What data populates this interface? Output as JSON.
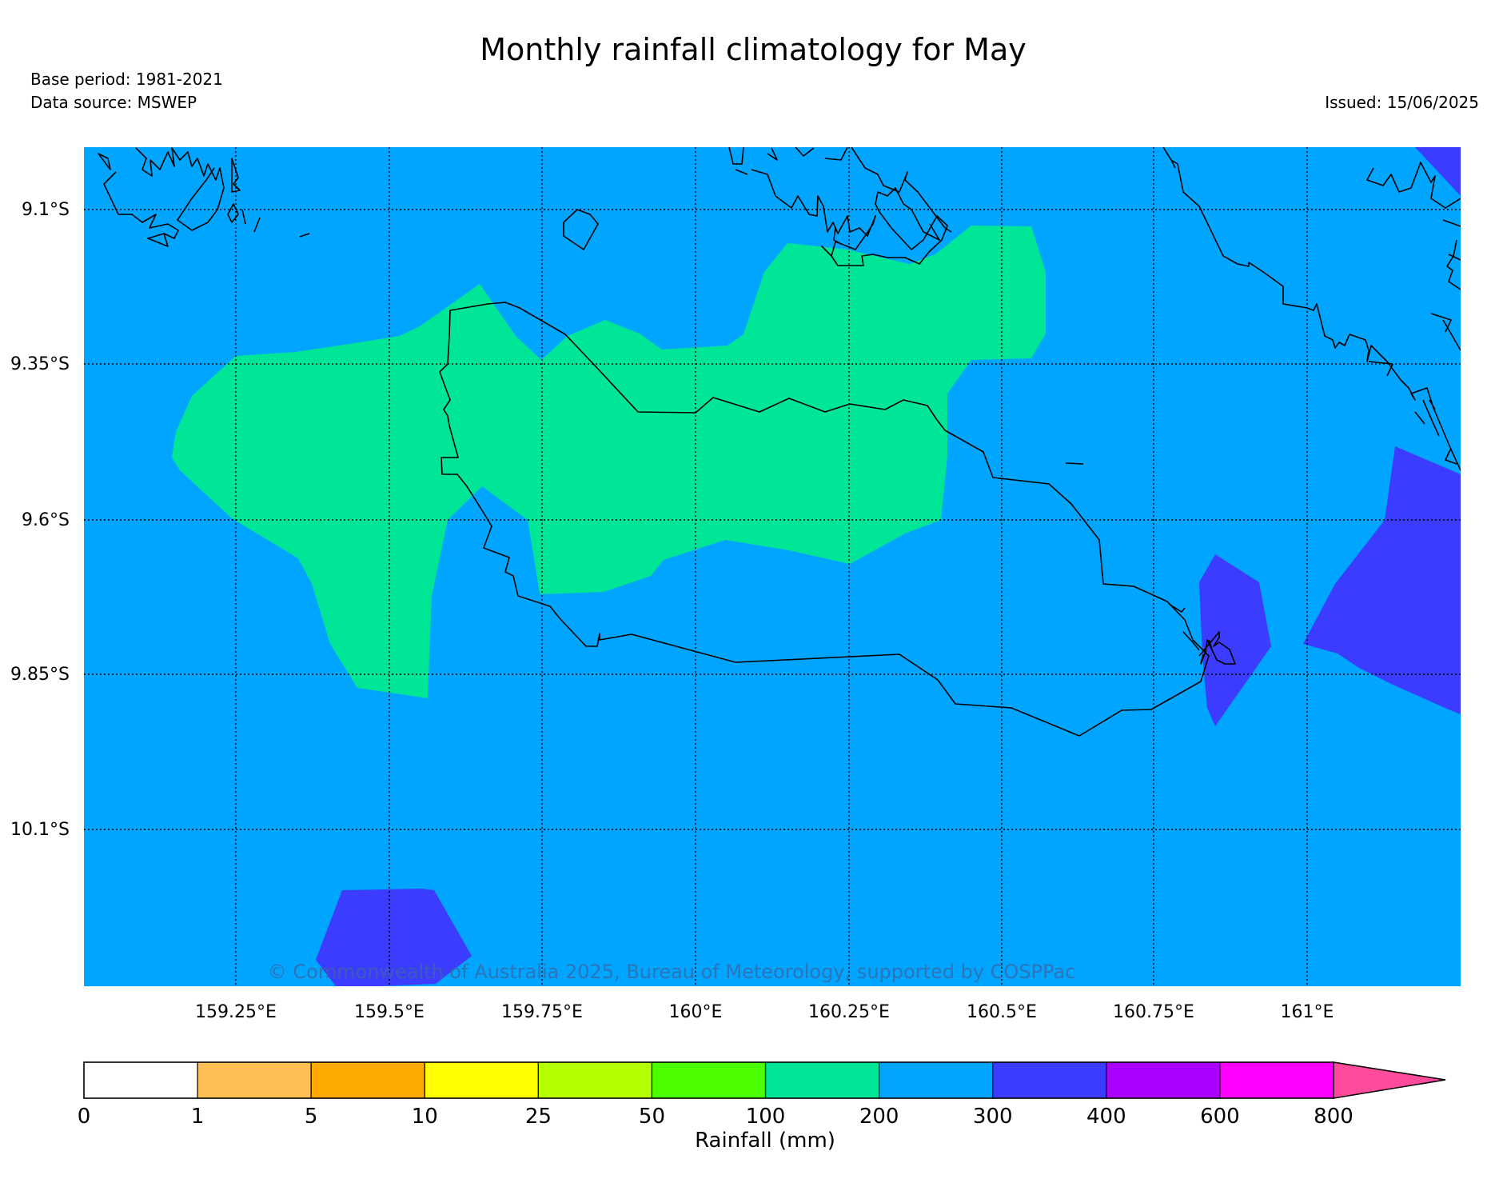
{
  "title": "Monthly rainfall climatology for May",
  "base_period": "Base period: 1981-2021",
  "data_source": "Data source: MSWEP",
  "issued": "Issued: 15/06/2025",
  "copyright": "© Commonwealth of Australia 2025, Bureau of Meteorology, supported by COSPPac",
  "lat_labels": [
    "9.1°S",
    "9.35°S",
    "9.6°S",
    "9.85°S",
    "10.1°S"
  ],
  "lon_labels": [
    "159.25°E",
    "159.5°E",
    "159.75°E",
    "160°E",
    "160.25°E",
    "160.5°E",
    "160.75°E",
    "161°E"
  ],
  "colorbar": {
    "label": "Rainfall (mm)",
    "ticks": [
      "0",
      "1",
      "5",
      "10",
      "25",
      "50",
      "100",
      "200",
      "300",
      "400",
      "600",
      "800"
    ],
    "colors": [
      "#ffffff",
      "#ffbe55",
      "#ffaa00",
      "#ffff00",
      "#b4ff00",
      "#4bff00",
      "#00e697",
      "#00a5ff",
      "#3c3cff",
      "#aa00ff",
      "#ff00ff",
      "#ff4b9b"
    ]
  },
  "legend_colors": {
    "band_100_200": "#00e697",
    "band_200_300": "#00a5ff",
    "band_300_400": "#3c3cff"
  }
}
